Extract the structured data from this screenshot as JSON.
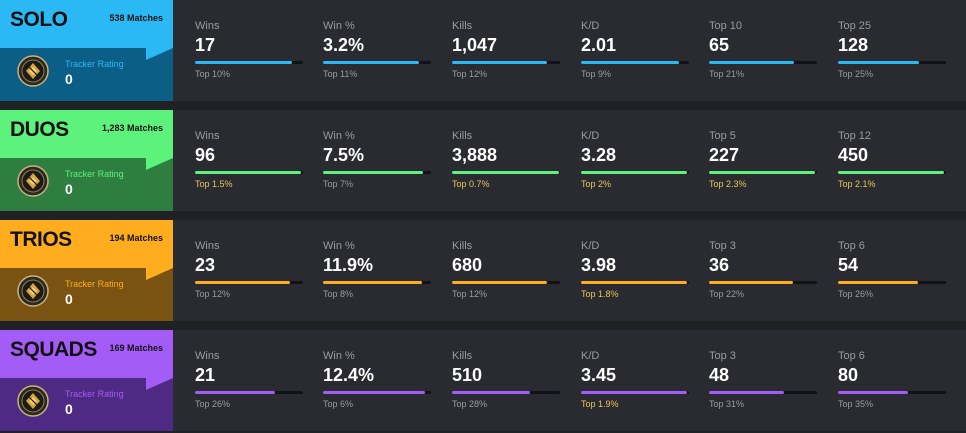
{
  "modes": [
    {
      "name": "SOLO",
      "matches": "538 Matches",
      "tracker_label": "Tracker Rating",
      "tracker_value": "0",
      "colors": {
        "top": "#2bb9f5",
        "bottom": "#0b5f87",
        "bar": "#2bb9f5",
        "label": "#2bb9f5"
      },
      "stats": [
        {
          "label": "Wins",
          "value": "17",
          "rank": "Top 10%",
          "fill": 0.9,
          "highlight": false
        },
        {
          "label": "Win %",
          "value": "3.2%",
          "rank": "Top 11%",
          "fill": 0.89,
          "highlight": false
        },
        {
          "label": "Kills",
          "value": "1,047",
          "rank": "Top 12%",
          "fill": 0.88,
          "highlight": false
        },
        {
          "label": "K/D",
          "value": "2.01",
          "rank": "Top 9%",
          "fill": 0.91,
          "highlight": false
        },
        {
          "label": "Top 10",
          "value": "65",
          "rank": "Top 21%",
          "fill": 0.79,
          "highlight": false
        },
        {
          "label": "Top 25",
          "value": "128",
          "rank": "Top 25%",
          "fill": 0.75,
          "highlight": false
        }
      ]
    },
    {
      "name": "DUOS",
      "matches": "1,283 Matches",
      "tracker_label": "Tracker Rating",
      "tracker_value": "0",
      "colors": {
        "top": "#5df27c",
        "bottom": "#2e7f3f",
        "bar": "#5df27c",
        "label": "#5df27c"
      },
      "stats": [
        {
          "label": "Wins",
          "value": "96",
          "rank": "Top 1.5%",
          "fill": 0.985,
          "highlight": true
        },
        {
          "label": "Win %",
          "value": "7.5%",
          "rank": "Top 7%",
          "fill": 0.93,
          "highlight": false
        },
        {
          "label": "Kills",
          "value": "3,888",
          "rank": "Top 0.7%",
          "fill": 0.993,
          "highlight": true
        },
        {
          "label": "K/D",
          "value": "3.28",
          "rank": "Top 2%",
          "fill": 0.98,
          "highlight": true
        },
        {
          "label": "Top 5",
          "value": "227",
          "rank": "Top 2.3%",
          "fill": 0.977,
          "highlight": true
        },
        {
          "label": "Top 12",
          "value": "450",
          "rank": "Top 2.1%",
          "fill": 0.979,
          "highlight": true
        }
      ]
    },
    {
      "name": "TRIOS",
      "matches": "194 Matches",
      "tracker_label": "Tracker Rating",
      "tracker_value": "0",
      "colors": {
        "top": "#ffad1f",
        "bottom": "#7a5312",
        "bar": "#ffad1f",
        "label": "#ffad1f"
      },
      "stats": [
        {
          "label": "Wins",
          "value": "23",
          "rank": "Top 12%",
          "fill": 0.88,
          "highlight": false
        },
        {
          "label": "Win %",
          "value": "11.9%",
          "rank": "Top 8%",
          "fill": 0.92,
          "highlight": false
        },
        {
          "label": "Kills",
          "value": "680",
          "rank": "Top 12%",
          "fill": 0.88,
          "highlight": false
        },
        {
          "label": "K/D",
          "value": "3.98",
          "rank": "Top 1.8%",
          "fill": 0.982,
          "highlight": true
        },
        {
          "label": "Top 3",
          "value": "36",
          "rank": "Top 22%",
          "fill": 0.78,
          "highlight": false
        },
        {
          "label": "Top 6",
          "value": "54",
          "rank": "Top 26%",
          "fill": 0.74,
          "highlight": false
        }
      ]
    },
    {
      "name": "SQUADS",
      "matches": "169 Matches",
      "tracker_label": "Tracker Rating",
      "tracker_value": "0",
      "colors": {
        "top": "#a35cf6",
        "bottom": "#4f2a85",
        "bar": "#a35cf6",
        "label": "#a35cf6"
      },
      "stats": [
        {
          "label": "Wins",
          "value": "21",
          "rank": "Top 26%",
          "fill": 0.74,
          "highlight": false
        },
        {
          "label": "Win %",
          "value": "12.4%",
          "rank": "Top 6%",
          "fill": 0.94,
          "highlight": false
        },
        {
          "label": "Kills",
          "value": "510",
          "rank": "Top 28%",
          "fill": 0.72,
          "highlight": false
        },
        {
          "label": "K/D",
          "value": "3.45",
          "rank": "Top 1.9%",
          "fill": 0.981,
          "highlight": true
        },
        {
          "label": "Top 3",
          "value": "48",
          "rank": "Top 31%",
          "fill": 0.69,
          "highlight": false
        },
        {
          "label": "Top 6",
          "value": "80",
          "rank": "Top 35%",
          "fill": 0.65,
          "highlight": false
        }
      ]
    }
  ],
  "tracker_icon": "tracker-rating-badge-icon",
  "highlight_color": "#e8c45a"
}
